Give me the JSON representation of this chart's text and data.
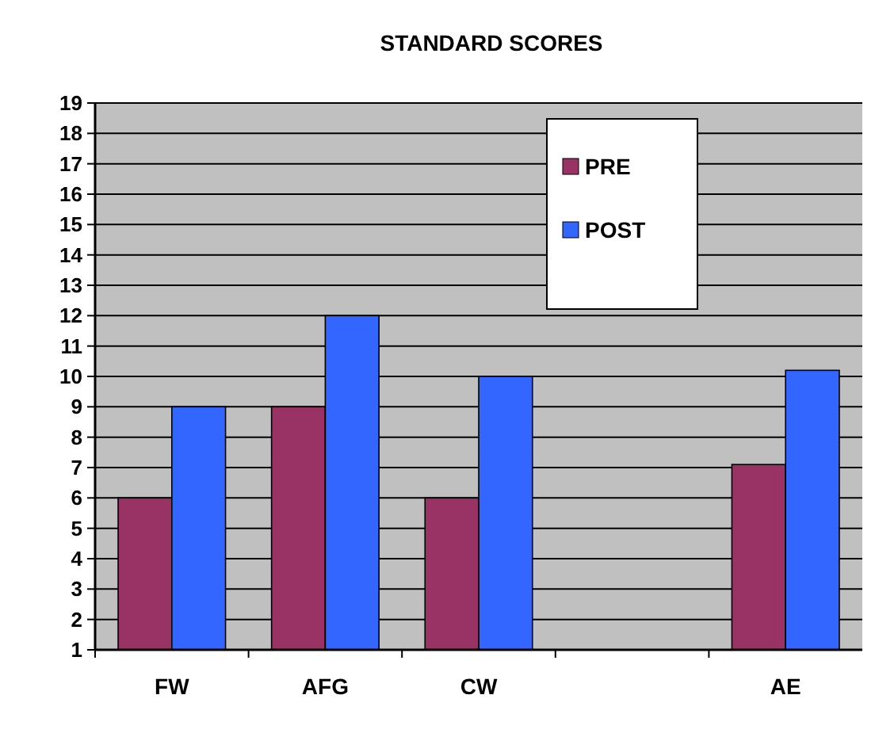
{
  "chart_data": {
    "type": "bar",
    "title": "STANDARD SCORES",
    "categories": [
      "FW",
      "AFG",
      "CW",
      null,
      "AE"
    ],
    "series": [
      {
        "name": "PRE",
        "color": "#993366",
        "values": [
          6,
          9,
          6,
          null,
          7.1
        ]
      },
      {
        "name": "POST",
        "color": "#3366ff",
        "values": [
          9,
          12,
          10,
          null,
          10.2
        ]
      }
    ],
    "ylim": [
      1,
      19
    ],
    "yticks": [
      1,
      2,
      3,
      4,
      5,
      6,
      7,
      8,
      9,
      10,
      11,
      12,
      13,
      14,
      15,
      16,
      17,
      18,
      19
    ],
    "grid": "y",
    "legend": "top right"
  }
}
